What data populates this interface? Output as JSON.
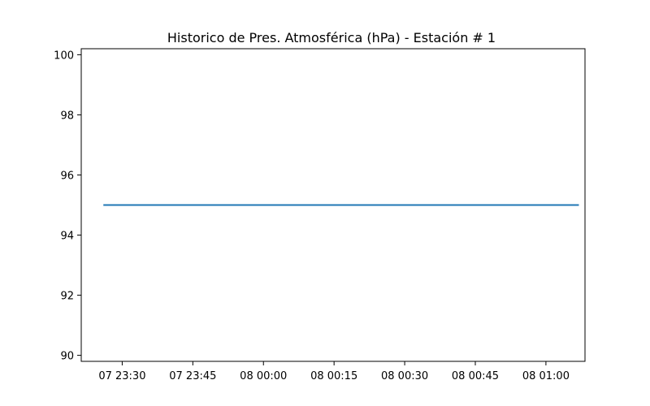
{
  "chart_data": {
    "type": "line",
    "title": "Historico de Pres. Atmosférica (hPa) - Estación # 1",
    "xlabel": "",
    "ylabel": "",
    "x_tick_labels": [
      "07 23:30",
      "07 23:45",
      "08 00:00",
      "08 00:15",
      "08 00:30",
      "08 00:45",
      "08 01:00"
    ],
    "x_tick_minutes": [
      30,
      45,
      60,
      75,
      90,
      105,
      120
    ],
    "y_ticks": [
      90,
      92,
      94,
      96,
      98,
      100
    ],
    "ylim": [
      89.8,
      100.2
    ],
    "xlim_minutes": [
      21.3,
      128.3
    ],
    "series": [
      {
        "x": [
          "07 23:26",
          "08 01:07"
        ],
        "x_minutes": [
          26,
          127
        ],
        "values": [
          95.0,
          95.0
        ],
        "color": "#1f77b4"
      }
    ],
    "grid": false,
    "legend": "none"
  }
}
